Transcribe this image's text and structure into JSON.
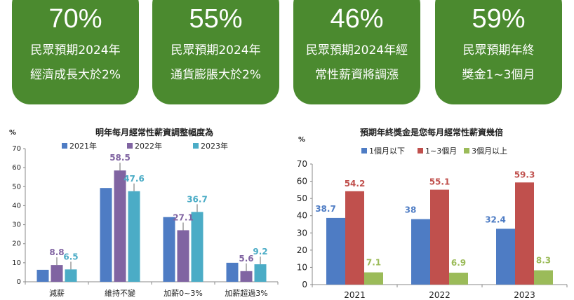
{
  "cards": [
    {
      "value": "70%",
      "line1": "民眾預期2024年",
      "line2": "經濟成長大於2%"
    },
    {
      "value": "55%",
      "line1": "民眾預期2024年",
      "line2": "通貨膨脹大於2%"
    },
    {
      "value": "46%",
      "line1": "民眾預期2024年經",
      "line2": "常性薪資將調漲"
    },
    {
      "value": "59%",
      "line1": "民眾預期年終",
      "line2": "獎金1~3個月"
    }
  ],
  "colors": {
    "card": "#4b8a2f",
    "blue": "#4e7cc4",
    "purple": "#8064a2",
    "teal": "#4bacc6",
    "red": "#c0504d",
    "green": "#9bbb59"
  },
  "chart_data": [
    {
      "type": "bar",
      "title": "明年每月經常性薪資調整幅度為",
      "ylabel": "%",
      "ylim": [
        0,
        70
      ],
      "yticks": [
        0,
        10,
        20,
        30,
        40,
        50,
        60,
        70
      ],
      "legend_position": "top",
      "categories": [
        "減薪",
        "維持不變",
        "加薪0~3%",
        "加薪超過3%"
      ],
      "series": [
        {
          "name": "2021年",
          "color": "#4e7cc4",
          "values": [
            6.3,
            49.3,
            34.0,
            10.0
          ]
        },
        {
          "name": "2022年",
          "color": "#8064a2",
          "values": [
            8.8,
            58.5,
            27.1,
            5.6
          ]
        },
        {
          "name": "2023年",
          "color": "#4bacc6",
          "values": [
            6.5,
            47.6,
            36.7,
            9.2
          ]
        }
      ],
      "labelled_series": [
        1,
        2
      ],
      "labels": [
        {
          "series": 1,
          "cat": 0,
          "text": "8.8"
        },
        {
          "series": 2,
          "cat": 0,
          "text": "6.5"
        },
        {
          "series": 1,
          "cat": 1,
          "text": "58.5"
        },
        {
          "series": 2,
          "cat": 1,
          "text": "47.6"
        },
        {
          "series": 1,
          "cat": 2,
          "text": "27.1"
        },
        {
          "series": 2,
          "cat": 2,
          "text": "36.7"
        },
        {
          "series": 1,
          "cat": 3,
          "text": "5.6"
        },
        {
          "series": 2,
          "cat": 3,
          "text": "9.2"
        }
      ]
    },
    {
      "type": "bar",
      "title": "預期年終獎金是您每月經常性薪資幾倍",
      "ylabel": "%",
      "ylim": [
        0,
        70
      ],
      "yticks": [
        0,
        10,
        20,
        30,
        40,
        50,
        60,
        70
      ],
      "legend_position": "top",
      "categories": [
        "2021",
        "2022",
        "2023"
      ],
      "series": [
        {
          "name": "1個月以下",
          "color": "#4e7cc4",
          "values": [
            38.7,
            38,
            32.4
          ],
          "labels": [
            "38.7",
            "38",
            "32.4"
          ]
        },
        {
          "name": "1~3個月",
          "color": "#c0504d",
          "values": [
            54.2,
            55.1,
            59.3
          ],
          "labels": [
            "54.2",
            "55.1",
            "59.3"
          ]
        },
        {
          "name": "3個月以上",
          "color": "#9bbb59",
          "values": [
            7.1,
            6.9,
            8.3
          ],
          "labels": [
            "7.1",
            "6.9",
            "8.3"
          ]
        }
      ]
    }
  ]
}
